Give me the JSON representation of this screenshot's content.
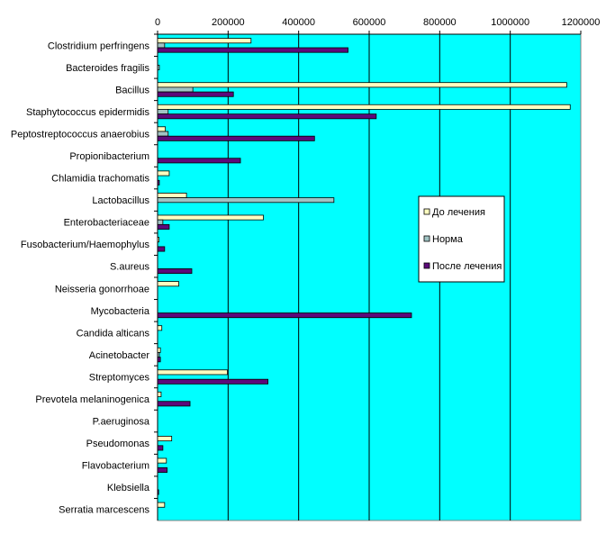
{
  "chart_data": {
    "type": "bar",
    "orientation": "horizontal",
    "categories": [
      "Clostridium perfringens",
      "Bacteroides fragilis",
      "Bacillus",
      "Staphytococcus epidermidis",
      "Peptostreptococcus anaerobius",
      "Propionibacterium",
      "Chlamidia trachomatis",
      "Lactobacillus",
      "Enterobacteriaceae",
      "Fusobacterium/Haemophylus",
      "S.aureus",
      "Neisseria gonorrhoae",
      "Mycobacteria",
      "Candida alticans",
      "Acinetobacter",
      "Streptomyces",
      "Prevotela melaninogenica",
      "P.aeruginosa",
      "Pseudomonas",
      "Flavobacterium",
      "Klebsiella",
      "Serratia marcescens"
    ],
    "series": [
      {
        "name": "До лечения",
        "color": "#FFFFC0",
        "values": [
          265000,
          0,
          1160000,
          1170000,
          22000,
          0,
          33000,
          82000,
          300000,
          4000,
          0,
          60000,
          0,
          12000,
          8000,
          198000,
          10000,
          0,
          40000,
          25000,
          0,
          20000
        ]
      },
      {
        "name": "Норма",
        "color": "#A0C4C4",
        "values": [
          20000,
          5000,
          100000,
          30000,
          30000,
          0,
          0,
          500000,
          15000,
          0,
          0,
          0,
          0,
          0,
          5000,
          0,
          0,
          0,
          0,
          0,
          0,
          0
        ]
      },
      {
        "name": "После лечения",
        "color": "#5C0A7A",
        "values": [
          540000,
          0,
          215000,
          620000,
          445000,
          235000,
          5000,
          0,
          33000,
          20000,
          97000,
          0,
          720000,
          0,
          8000,
          313000,
          92000,
          0,
          15000,
          27000,
          3000,
          0
        ]
      }
    ],
    "xlim": [
      0,
      1200000
    ],
    "xticks": [
      "0",
      "200000",
      "400000",
      "600000",
      "800000",
      "1000000",
      "1200000"
    ],
    "x_axis_position": "top",
    "grid": true,
    "legend_placement": "right",
    "plot_background": "#00FFFF",
    "title": "",
    "xlabel": "",
    "ylabel": ""
  }
}
